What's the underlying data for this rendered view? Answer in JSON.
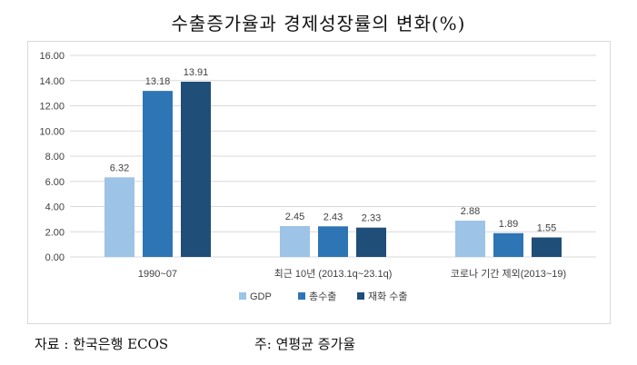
{
  "title": "수출증가율과 경제성장률의 변화(%)",
  "source": "자료 : 한국은행 ECOS",
  "note": "주: 연평균 증가율",
  "colors": {
    "GDP": "#9dc3e6",
    "총수출": "#2e75b6",
    "재화 수출": "#1f4e79"
  },
  "chart_data": {
    "type": "bar",
    "categories": [
      "1990~07",
      "최근 10년 (2013.1q~23.1q)",
      "코로나 기간 제외(2013~19)"
    ],
    "series": [
      {
        "name": "GDP",
        "values": [
          6.32,
          2.45,
          2.88
        ]
      },
      {
        "name": "총수출",
        "values": [
          13.18,
          2.43,
          1.89
        ]
      },
      {
        "name": "재화 수출",
        "values": [
          13.91,
          2.33,
          1.55
        ]
      }
    ],
    "y_ticks": [
      "0.00",
      "2.00",
      "4.00",
      "6.00",
      "8.00",
      "10.00",
      "12.00",
      "14.00",
      "16.00"
    ],
    "ylim": [
      0,
      16
    ],
    "grid": true,
    "legend_position": "bottom"
  }
}
